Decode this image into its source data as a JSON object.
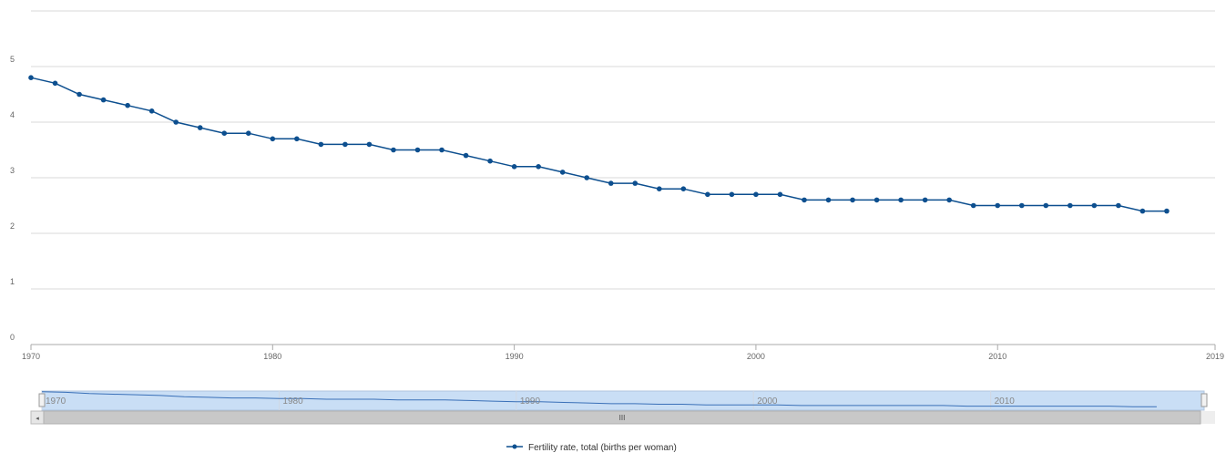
{
  "colors": {
    "series": "#0d4f8f",
    "grid": "#d9d9d9",
    "navigator_fill": "#c9def5",
    "scrollbar": "#c8c8c8"
  },
  "chart_data": {
    "type": "line",
    "title": "",
    "xlabel": "",
    "ylabel": "",
    "xlim": [
      1970,
      2019
    ],
    "ylim": [
      0,
      5
    ],
    "yticks": [
      0,
      1,
      2,
      3,
      4,
      5
    ],
    "xticks": [
      1970,
      1980,
      1990,
      2000,
      2010,
      2019
    ],
    "grid": true,
    "legend_position": "bottom-center",
    "series": [
      {
        "name": "Fertility rate, total (births per woman)",
        "x": [
          1970,
          1971,
          1972,
          1973,
          1974,
          1975,
          1976,
          1977,
          1978,
          1979,
          1980,
          1981,
          1982,
          1983,
          1984,
          1985,
          1986,
          1987,
          1988,
          1989,
          1990,
          1991,
          1992,
          1993,
          1994,
          1995,
          1996,
          1997,
          1998,
          1999,
          2000,
          2001,
          2002,
          2003,
          2004,
          2005,
          2006,
          2007,
          2008,
          2009,
          2010,
          2011,
          2012,
          2013,
          2014,
          2015,
          2016,
          2017
        ],
        "values": [
          4.8,
          4.7,
          4.5,
          4.4,
          4.3,
          4.2,
          4.0,
          3.9,
          3.8,
          3.8,
          3.7,
          3.7,
          3.6,
          3.6,
          3.6,
          3.5,
          3.5,
          3.5,
          3.4,
          3.3,
          3.2,
          3.2,
          3.1,
          3.0,
          2.9,
          2.9,
          2.8,
          2.8,
          2.7,
          2.7,
          2.7,
          2.7,
          2.6,
          2.6,
          2.6,
          2.6,
          2.6,
          2.6,
          2.6,
          2.5,
          2.5,
          2.5,
          2.5,
          2.5,
          2.5,
          2.5,
          2.4,
          2.4
        ]
      }
    ]
  },
  "navigator": {
    "labels": [
      "1970",
      "1980",
      "1990",
      "2000",
      "2010"
    ],
    "scrollbar_grip": "III",
    "scroll_left_arrow": "◂"
  }
}
